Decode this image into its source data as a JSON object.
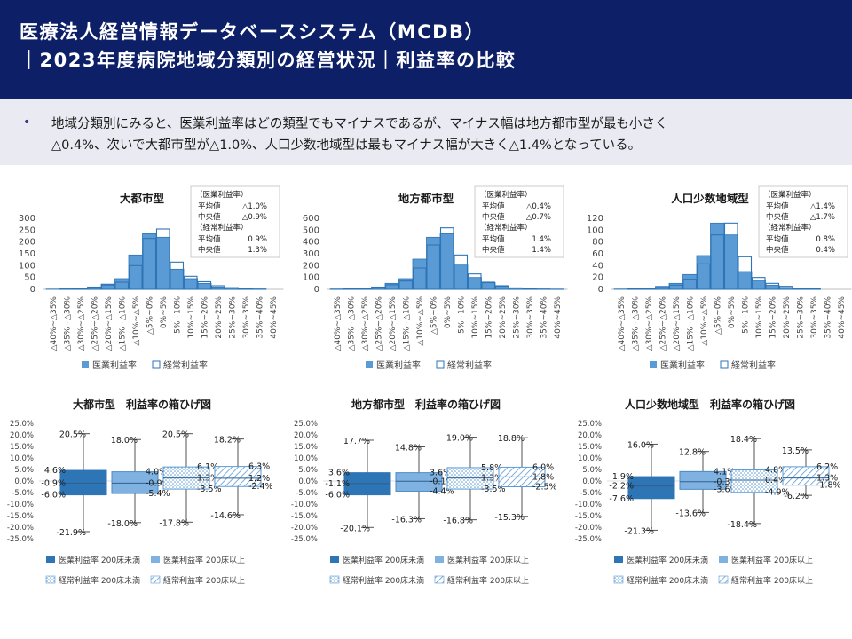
{
  "header": {
    "title_line1": "医療法人経営情報データベースシステム（MCDB）",
    "title_line2": "｜2023年度病院地域分類別の経営状況｜利益率の比較"
  },
  "summary": {
    "bullet": "•",
    "line1": "地域分類別にみると、医業利益率はどの類型でもマイナスであるが、マイナス幅は地方都市型が最も小さく",
    "line2": "△0.4%、次いで大都市型が△1.0%、人口少数地域型は最もマイナス幅が大きく△1.4%となっている。"
  },
  "colors": {
    "header_bg": "#0d1f66",
    "med_fill": "#5b9bd5",
    "med_dark": "#2e75b6",
    "ord_stroke": "#2e75b6"
  },
  "legend_hist": {
    "medical": "医業利益率",
    "ordinary": "経常利益率"
  },
  "legend_box": {
    "med_small": "医業利益率 200床未満",
    "med_large": "医業利益率 200床以上",
    "ord_small": "経常利益率 200床未満",
    "ord_large": "経常利益率 200床以上"
  },
  "chart_data": [
    {
      "type": "bar",
      "title": "大都市型",
      "categories": [
        "△40%~△35%",
        "△35%~△30%",
        "△30%~△25%",
        "△25%~△20%",
        "△20%~△15%",
        "△15%~△10%",
        "△10%~△5%",
        "△5%~0%",
        "0%~5%",
        "5%~10%",
        "10%~15%",
        "15%~20%",
        "20%~25%",
        "25%~30%",
        "30%~35%",
        "35%~40%",
        "40%~45%"
      ],
      "yticks": [
        0,
        50,
        100,
        150,
        200,
        250,
        300
      ],
      "ylim": [
        0,
        300
      ],
      "series": [
        {
          "name": "医業利益率",
          "values": [
            1,
            2,
            5,
            10,
            22,
            45,
            145,
            235,
            220,
            85,
            45,
            25,
            10,
            5,
            2,
            1,
            0
          ]
        },
        {
          "name": "経常利益率",
          "values": [
            0,
            1,
            3,
            7,
            18,
            30,
            100,
            215,
            255,
            115,
            55,
            32,
            15,
            7,
            3,
            1,
            0
          ]
        }
      ],
      "stats": {
        "med_label": "（医業利益率）",
        "mean_label": "平均値",
        "mean_med": "△1.0%",
        "median_label": "中央値",
        "median_med": "△0.9%",
        "ord_label": "（経常利益率）",
        "mean_ord": "0.9%",
        "median_ord": "1.3%"
      }
    },
    {
      "type": "bar",
      "title": "地方都市型",
      "categories": [
        "△40%~△35%",
        "△35%~△30%",
        "△30%~△25%",
        "△25%~△20%",
        "△20%~△15%",
        "△15%~△10%",
        "△10%~△5%",
        "△5%~0%",
        "0%~5%",
        "5%~10%",
        "10%~15%",
        "15%~20%",
        "20%~25%",
        "25%~30%",
        "30%~35%",
        "35%~40%",
        "40%~45%"
      ],
      "yticks": [
        0,
        100,
        200,
        300,
        400,
        500,
        600
      ],
      "ylim": [
        0,
        600
      ],
      "series": [
        {
          "name": "医業利益率",
          "values": [
            2,
            5,
            10,
            20,
            50,
            90,
            255,
            440,
            470,
            205,
            100,
            55,
            25,
            10,
            5,
            2,
            1
          ]
        },
        {
          "name": "経常利益率",
          "values": [
            1,
            3,
            7,
            15,
            38,
            70,
            180,
            375,
            520,
            290,
            130,
            60,
            30,
            12,
            6,
            2,
            1
          ]
        }
      ],
      "stats": {
        "med_label": "（医業利益率）",
        "mean_label": "平均値",
        "mean_med": "△0.4%",
        "median_label": "中央値",
        "median_med": "△0.7%",
        "ord_label": "（経常利益率）",
        "mean_ord": "1.4%",
        "median_ord": "1.4%"
      }
    },
    {
      "type": "bar",
      "title": "人口少数地域型",
      "categories": [
        "△40%~△35%",
        "△35%~△30%",
        "△30%~△25%",
        "△25%~△20%",
        "△20%~△15%",
        "△15%~△10%",
        "△10%~△5%",
        "△5%~0%",
        "0%~5%",
        "5%~10%",
        "10%~15%",
        "15%~20%",
        "20%~25%",
        "25%~30%",
        "30%~35%",
        "35%~40%",
        "40%~45%"
      ],
      "yticks": [
        0,
        20,
        40,
        60,
        80,
        100,
        120
      ],
      "ylim": [
        0,
        120
      ],
      "series": [
        {
          "name": "医業利益率",
          "values": [
            0.5,
            1,
            2,
            5,
            10,
            25,
            57,
            112,
            92,
            30,
            15,
            7,
            3,
            1,
            1,
            0,
            0
          ]
        },
        {
          "name": "経常利益率",
          "values": [
            0,
            0.5,
            1,
            3,
            7,
            17,
            43,
            92,
            112,
            55,
            20,
            10,
            5,
            2,
            1,
            0,
            0
          ]
        }
      ],
      "stats": {
        "med_label": "（医業利益率）",
        "mean_label": "平均値",
        "mean_med": "△1.4%",
        "median_label": "中央値",
        "median_med": "△1.7%",
        "ord_label": "（経常利益率）",
        "mean_ord": "0.8%",
        "median_ord": "0.4%"
      }
    },
    {
      "type": "box",
      "title": "大都市型　利益率の箱ひげ図",
      "yticks": [
        "25.0%",
        "20.0%",
        "15.0%",
        "10.0%",
        "5.0%",
        "0.0%",
        "-5.0%",
        "-10.0%",
        "-15.0%",
        "-20.0%",
        "-25.0%"
      ],
      "ylim": [
        -25,
        25
      ],
      "boxes": [
        {
          "max": 20.5,
          "q3": 4.6,
          "median": -0.9,
          "q1": -6.0,
          "min": -21.9,
          "max_l": "20.5%",
          "q3_l": "4.6%",
          "med_l": "-0.9%",
          "q1_l": "-6.0%",
          "min_l": "-21.9%"
        },
        {
          "max": 18.0,
          "q3": 4.0,
          "median": -0.9,
          "q1": -5.4,
          "min": -18.0,
          "max_l": "18.0%",
          "q3_l": "4.0%",
          "med_l": "-0.9%",
          "q1_l": "-5.4%",
          "min_l": "-18.0%"
        },
        {
          "max": 20.5,
          "q3": 6.1,
          "median": 1.3,
          "q1": -3.5,
          "min": -17.8,
          "max_l": "20.5%",
          "q3_l": "6.1%",
          "med_l": "1.3%",
          "q1_l": "-3.5%",
          "min_l": "-17.8%"
        },
        {
          "max": 18.2,
          "q3": 6.3,
          "median": 1.2,
          "q1": -2.4,
          "min": -14.6,
          "max_l": "18.2%",
          "q3_l": "6.3%",
          "med_l": "1.2%",
          "q1_l": "-2.4%",
          "min_l": "-14.6%"
        }
      ]
    },
    {
      "type": "box",
      "title": "地方都市型　利益率の箱ひげ図",
      "yticks": [
        "25.0%",
        "20.0%",
        "15.0%",
        "10.0%",
        "5.0%",
        "0.0%",
        "-5.0%",
        "-10.0%",
        "-15.0%",
        "-20.0%",
        "-25.0%"
      ],
      "ylim": [
        -25,
        25
      ],
      "boxes": [
        {
          "max": 17.7,
          "q3": 3.6,
          "median": -1.1,
          "q1": -6.0,
          "min": -20.1,
          "max_l": "17.7%",
          "q3_l": "3.6%",
          "med_l": "-1.1%",
          "q1_l": "-6.0%",
          "min_l": "-20.1%"
        },
        {
          "max": 14.8,
          "q3": 3.6,
          "median": -0.1,
          "q1": -4.4,
          "min": -16.3,
          "max_l": "14.8%",
          "q3_l": "3.6%",
          "med_l": "-0.1%",
          "q1_l": "-4.4%",
          "min_l": "-16.3%"
        },
        {
          "max": 19.0,
          "q3": 5.8,
          "median": 1.3,
          "q1": -3.5,
          "min": -16.8,
          "max_l": "19.0%",
          "q3_l": "5.8%",
          "med_l": "1.3%",
          "q1_l": "-3.5%",
          "min_l": "-16.8%"
        },
        {
          "max": 18.8,
          "q3": 6.0,
          "median": 1.8,
          "q1": -2.5,
          "min": -15.3,
          "max_l": "18.8%",
          "q3_l": "6.0%",
          "med_l": "1.8%",
          "q1_l": "-2.5%",
          "min_l": "-15.3%"
        }
      ]
    },
    {
      "type": "box",
      "title": "人口少数地域型　利益率の箱ひげ図",
      "yticks": [
        "25.0%",
        "20.0%",
        "15.0%",
        "10.0%",
        "5.0%",
        "0.0%",
        "-5.0%",
        "-10.0%",
        "-15.0%",
        "-20.0%",
        "-25.0%"
      ],
      "ylim": [
        -25,
        25
      ],
      "boxes": [
        {
          "max": 16.0,
          "q3": 1.9,
          "median": -2.2,
          "q1": -7.6,
          "min": -21.3,
          "max_l": "16.0%",
          "q3_l": "1.9%",
          "med_l": "-2.2%",
          "q1_l": "-7.6%",
          "min_l": "-21.3%"
        },
        {
          "max": 12.8,
          "q3": 4.1,
          "median": -0.3,
          "q1": -3.6,
          "min": -13.6,
          "max_l": "12.8%",
          "q3_l": "4.1%",
          "med_l": "-0.3%",
          "q1_l": "-3.6%",
          "min_l": "-13.6%"
        },
        {
          "max": 18.4,
          "q3": 4.8,
          "median": 0.4,
          "q1": -4.9,
          "min": -18.4,
          "max_l": "18.4%",
          "q3_l": "4.8%",
          "med_l": "0.4%",
          "q1_l": "-4.9%",
          "min_l": "-18.4%"
        },
        {
          "max": 13.5,
          "q3": 6.2,
          "median": 1.3,
          "q1": -1.8,
          "min": -6.2,
          "max_l": "13.5%",
          "q3_l": "6.2%",
          "med_l": "1.3%",
          "q1_l": "-1.8%",
          "min_l": "-6.2%"
        }
      ]
    }
  ]
}
